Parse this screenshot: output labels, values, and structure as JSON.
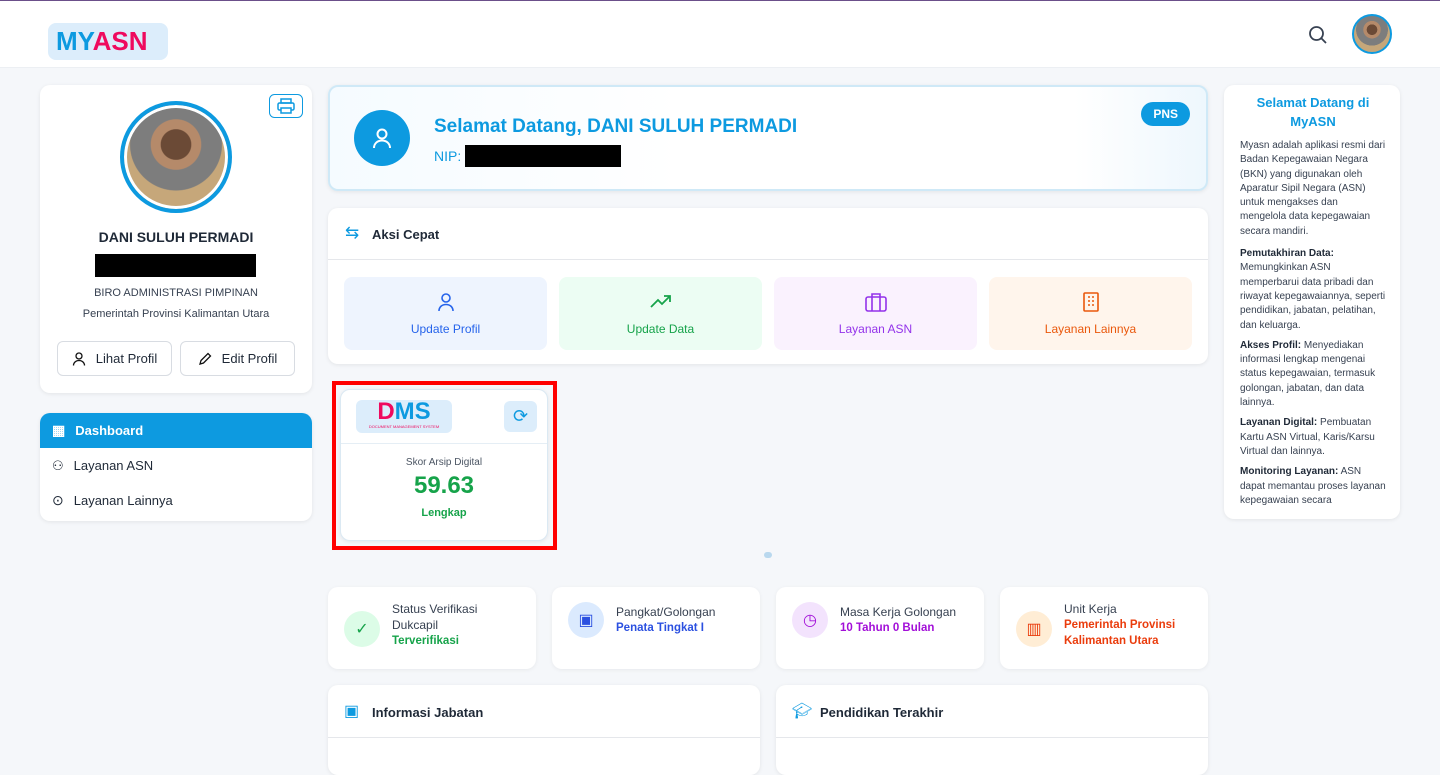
{
  "header": {
    "logo_my": "MY",
    "logo_asn": "ASN"
  },
  "profile": {
    "name": "DANI SULUH PERMADI",
    "unit": "BIRO ADMINISTRASI PIMPINAN",
    "instansi": "Pemerintah Provinsi Kalimantan Utara",
    "view_label": "Lihat Profil",
    "edit_label": "Edit Profil"
  },
  "nav": [
    {
      "label": "Dashboard",
      "active": true
    },
    {
      "label": "Layanan ASN"
    },
    {
      "label": "Layanan Lainnya"
    }
  ],
  "welcome": {
    "title": "Selamat Datang, DANI SULUH PERMADI",
    "nip_label": "NIP:",
    "badge": "PNS"
  },
  "quick": {
    "title": "Aksi Cepat",
    "items": [
      {
        "label": "Update Profil",
        "color": "#2563eb",
        "bg": "#eef4fe"
      },
      {
        "label": "Update Data",
        "color": "#16a34a",
        "bg": "#ecfdf3"
      },
      {
        "label": "Layanan ASN",
        "color": "#9333ea",
        "bg": "#faf2fe"
      },
      {
        "label": "Layanan Lainnya",
        "color": "#ea580c",
        "bg": "#fff5ec"
      }
    ]
  },
  "dms": {
    "logo": "DMS",
    "logo_sub": "DOCUMENT MANAGEMENT SYSTEM",
    "label": "Skor Arsip Digital",
    "score": "59.63",
    "status": "Lengkap"
  },
  "stats": [
    {
      "label": "Status Verifikasi Dukcapil",
      "value": "Terverifikasi",
      "color": "#16a34a"
    },
    {
      "label": "Pangkat/Golongan",
      "value": "Penata Tingkat I",
      "color": "#2b50e0"
    },
    {
      "label": "Masa Kerja Golongan",
      "value": "10 Tahun 0 Bulan",
      "color": "#a20fd8"
    },
    {
      "label": "Unit Kerja",
      "value": "Pemerintah Provinsi Kalimantan Utara",
      "color": "#ea3c0c"
    }
  ],
  "sections": {
    "jabatan": "Informasi Jabatan",
    "pendidikan": "Pendidikan Terakhir"
  },
  "info": {
    "title": "Selamat Datang di MyASN",
    "intro": "Myasn adalah aplikasi resmi dari Badan Kepegawaian Negara (BKN) yang digunakan oleh Aparatur Sipil Negara (ASN) untuk mengakses dan mengelola data kepegawaian secara mandiri.",
    "items": [
      {
        "head": "Pemutakhiran Data:",
        "text": " Memungkinkan ASN memperbarui data pribadi dan riwayat kepegawaiannya, seperti pendidikan, jabatan, pelatihan, dan keluarga."
      },
      {
        "head": "Akses Profil:",
        "text": " Menyediakan informasi lengkap mengenai status kepegawaian, termasuk golongan, jabatan, dan data lainnya."
      },
      {
        "head": "Layanan Digital:",
        "text": " Pembuatan Kartu ASN Virtual, Karis/Karsu Virtual dan lainnya."
      },
      {
        "head": "Monitoring Layanan:",
        "text": " ASN dapat memantau proses layanan kepegawaian secara"
      }
    ]
  }
}
